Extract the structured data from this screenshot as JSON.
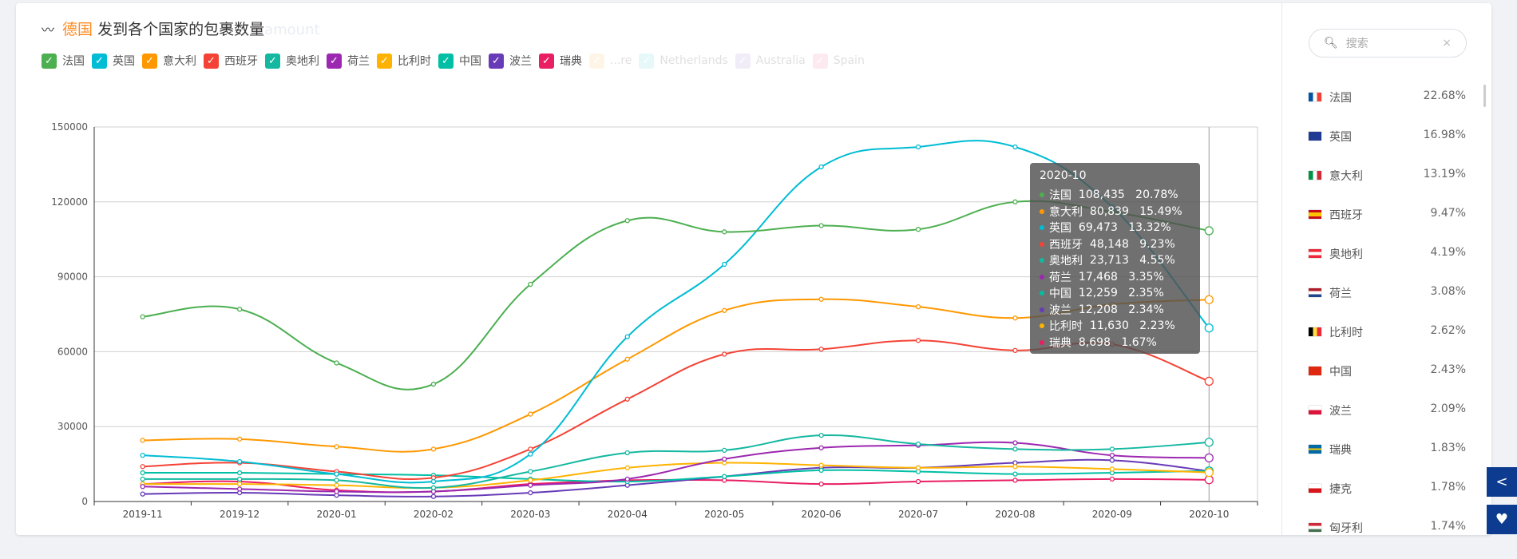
{
  "header": {
    "title_highlight": "德国",
    "title_rest": "发到各个国家的包裹数量",
    "ghost_text": "amount",
    "icon": "trend-line-icon"
  },
  "legend": [
    {
      "label": "法国",
      "color": "#4caf50"
    },
    {
      "label": "英国",
      "color": "#00bcd4"
    },
    {
      "label": "意大利",
      "color": "#ff9800"
    },
    {
      "label": "西班牙",
      "color": "#f44336"
    },
    {
      "label": "奥地利",
      "color": "#14b8a0"
    },
    {
      "label": "荷兰",
      "color": "#9c27b0"
    },
    {
      "label": "比利时",
      "color": "#ffb300"
    },
    {
      "label": "中国",
      "color": "#00bfa5"
    },
    {
      "label": "波兰",
      "color": "#673ab7"
    },
    {
      "label": "瑞典",
      "color": "#e91e63"
    }
  ],
  "legend_faded": [
    {
      "label": "...re",
      "color": "#ffcc80"
    },
    {
      "label": "Netherlands",
      "color": "#80deea"
    },
    {
      "label": "Australia",
      "color": "#b39ddb"
    },
    {
      "label": "Spain",
      "color": "#f48fb1"
    }
  ],
  "chart_data": {
    "type": "line",
    "title": "德国 发到各个国家的包裹数量",
    "categories": [
      "2019-11",
      "2019-12",
      "2020-01",
      "2020-02",
      "2020-03",
      "2020-04",
      "2020-05",
      "2020-06",
      "2020-07",
      "2020-08",
      "2020-09",
      "2020-10"
    ],
    "ylim": [
      0,
      150000
    ],
    "yticks": [
      "0",
      "30000",
      "60000",
      "90000",
      "120000",
      "150000"
    ],
    "grid": true,
    "legend_position": "top-left",
    "smooth": true,
    "series": [
      {
        "name": "法国",
        "color": "#4caf50",
        "values": [
          74000,
          77000,
          55500,
          47000,
          87000,
          112500,
          108000,
          110500,
          109000,
          120000,
          116000,
          108435
        ]
      },
      {
        "name": "英国",
        "color": "#00bcd4",
        "values": [
          18500,
          16000,
          11000,
          8000,
          19000,
          66000,
          95000,
          134000,
          142000,
          142000,
          118000,
          69473
        ]
      },
      {
        "name": "意大利",
        "color": "#ff9800",
        "values": [
          24500,
          25000,
          22000,
          21000,
          35000,
          57000,
          76500,
          81000,
          78000,
          73500,
          79000,
          80839
        ]
      },
      {
        "name": "西班牙",
        "color": "#f44336",
        "values": [
          14000,
          15500,
          12000,
          9500,
          21000,
          41000,
          59000,
          61000,
          64500,
          60500,
          63000,
          48148
        ]
      },
      {
        "name": "奥地利",
        "color": "#14b8a0",
        "values": [
          9000,
          9000,
          8500,
          5500,
          12000,
          19500,
          20500,
          26500,
          23000,
          21000,
          21000,
          23713
        ]
      },
      {
        "name": "荷兰",
        "color": "#9c27b0",
        "values": [
          6000,
          5000,
          4000,
          4000,
          6500,
          9000,
          17000,
          21500,
          22500,
          23500,
          18500,
          17468
        ]
      },
      {
        "name": "比利时",
        "color": "#ffb300",
        "values": [
          7000,
          7000,
          6500,
          5500,
          8500,
          13500,
          15500,
          14500,
          13500,
          14000,
          13000,
          11630
        ]
      },
      {
        "name": "中国",
        "color": "#00bfa5",
        "values": [
          11500,
          11500,
          11000,
          10500,
          9000,
          8000,
          10000,
          12500,
          12000,
          11000,
          11500,
          12259
        ]
      },
      {
        "name": "波兰",
        "color": "#673ab7",
        "values": [
          3000,
          3500,
          2500,
          2000,
          3500,
          6500,
          10000,
          13500,
          13500,
          15500,
          16500,
          12208
        ]
      },
      {
        "name": "瑞典",
        "color": "#e91e63",
        "values": [
          7000,
          8000,
          4500,
          4000,
          7000,
          8500,
          8500,
          7000,
          8000,
          8500,
          9000,
          8698
        ]
      }
    ]
  },
  "tooltip": {
    "title": "2020-10",
    "rows": [
      {
        "name": "法国",
        "value": "108,435",
        "pct": "20.78%",
        "color": "#4caf50"
      },
      {
        "name": "意大利",
        "value": "80,839",
        "pct": "15.49%",
        "color": "#ff9800"
      },
      {
        "name": "英国",
        "value": "69,473",
        "pct": "13.32%",
        "color": "#00bcd4"
      },
      {
        "name": "西班牙",
        "value": "48,148",
        "pct": "9.23%",
        "color": "#f44336"
      },
      {
        "name": "奥地利",
        "value": "23,713",
        "pct": "4.55%",
        "color": "#14b8a0"
      },
      {
        "name": "荷兰",
        "value": "17,468",
        "pct": "3.35%",
        "color": "#9c27b0"
      },
      {
        "name": "中国",
        "value": "12,259",
        "pct": "2.35%",
        "color": "#00bfa5"
      },
      {
        "name": "波兰",
        "value": "12,208",
        "pct": "2.34%",
        "color": "#673ab7"
      },
      {
        "name": "比利时",
        "value": "11,630",
        "pct": "2.23%",
        "color": "#ffb300"
      },
      {
        "name": "瑞典",
        "value": "8,698",
        "pct": "1.67%",
        "color": "#e91e63"
      }
    ]
  },
  "sidebar": {
    "search_placeholder": "搜索",
    "items": [
      {
        "name": "法国",
        "pct": "22.68%",
        "flag": "fr"
      },
      {
        "name": "英国",
        "pct": "16.98%",
        "flag": "gb"
      },
      {
        "name": "意大利",
        "pct": "13.19%",
        "flag": "it"
      },
      {
        "name": "西班牙",
        "pct": "9.47%",
        "flag": "es"
      },
      {
        "name": "奥地利",
        "pct": "4.19%",
        "flag": "at"
      },
      {
        "name": "荷兰",
        "pct": "3.08%",
        "flag": "nl"
      },
      {
        "name": "比利时",
        "pct": "2.62%",
        "flag": "be"
      },
      {
        "name": "中国",
        "pct": "2.43%",
        "flag": "cn"
      },
      {
        "name": "波兰",
        "pct": "2.09%",
        "flag": "pl"
      },
      {
        "name": "瑞典",
        "pct": "1.83%",
        "flag": "se"
      },
      {
        "name": "捷克",
        "pct": "1.78%",
        "flag": "cz"
      },
      {
        "name": "匈牙利",
        "pct": "1.74%",
        "flag": "hu"
      }
    ]
  },
  "side_buttons": [
    {
      "icon": "share-icon"
    },
    {
      "icon": "heart-icon"
    }
  ]
}
